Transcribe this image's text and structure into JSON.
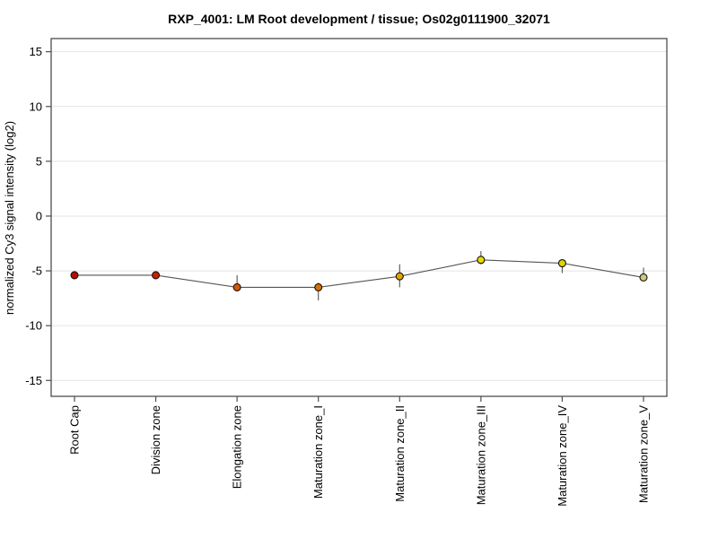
{
  "page": {
    "background_color": "#ffffff"
  },
  "chart_data": {
    "type": "line",
    "title": "RXP_4001: LM Root development / tissue; Os02g0111900_32071",
    "xlabel": "",
    "ylabel": "normalized Cy3 signal intensity (log2)",
    "categories": [
      "Root Cap",
      "Division zone",
      "Elongation zone",
      "Maturation zone_I",
      "Maturation zone_II",
      "Maturation zone_III",
      "Maturation zone_IV",
      "Maturation zone_V"
    ],
    "series": [
      {
        "name": "normalized Cy3 signal intensity (log2)",
        "values": [
          -5.4,
          -5.4,
          -6.5,
          -6.5,
          -5.5,
          -4.0,
          -4.3,
          -5.6
        ],
        "error_plus": [
          0.3,
          0.35,
          1.1,
          0.4,
          1.1,
          0.8,
          0.3,
          0.9
        ],
        "error_minus": [
          0.3,
          0.35,
          0.3,
          1.2,
          1.0,
          0.4,
          0.9,
          0.3
        ],
        "point_colors": [
          "#b50d00",
          "#cc1e00",
          "#d95700",
          "#db6e00",
          "#e3a400",
          "#e8dc00",
          "#e0d500",
          "#cdc978"
        ]
      }
    ],
    "yticks": [
      -15,
      -10,
      -5,
      0,
      5,
      10,
      15
    ],
    "ylim": [
      -16.45,
      16.2
    ],
    "grid": true,
    "legend_position": "none",
    "marker": "circle",
    "colors": {
      "line": "#555555",
      "error_bar": "#555555",
      "marker_outline": "#111111",
      "grid": "#e4e4e4",
      "frame": "#4d4d4d",
      "tick": "#4d4d4d"
    }
  }
}
